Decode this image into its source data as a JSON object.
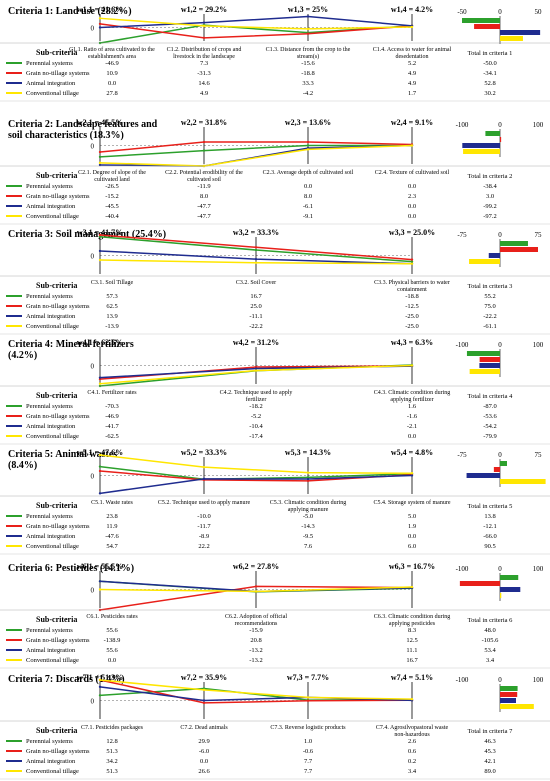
{
  "sub_criteria_label": "Sub-criteria",
  "colors": {
    "Perennial systems": "#2ca02c",
    "Grain no-tillage systems": "#e8201a",
    "Animal integration": "#1f2c8f",
    "Conventional tillage": "#ffe600"
  },
  "chart_data": [
    {
      "type": "line",
      "title": "Criteria 1: Land use (28.2%)",
      "weights": [
        "w1,1 = 41.6%",
        "w1,2 = 29.2%",
        "w1,3 = 25%",
        "w1,4 = 4.2%"
      ],
      "categories": [
        "C1.1. Ratio of area cultivated to the establishment's area",
        "C1.2. Distribution of crops and livestock in the landscape",
        "C1.3. Distance from the crop to the stream(s)",
        "C1.4. Access to water for animal desedentation"
      ],
      "total_label": "Total in criteria 1",
      "axis_ticks": [
        "-50",
        "0",
        "50"
      ],
      "axis_range": [
        -50,
        50
      ],
      "series": [
        {
          "name": "Perennial systems",
          "values": [
            -46.9,
            7.3,
            -15.6,
            5.2
          ],
          "total": -50.0
        },
        {
          "name": "Grain no-tillage systems",
          "values": [
            10.9,
            -31.3,
            -18.8,
            4.9
          ],
          "total": -34.1
        },
        {
          "name": "Animal integration",
          "values": [
            0.0,
            14.6,
            33.3,
            4.9
          ],
          "total": 52.8
        },
        {
          "name": "Conventional tillage",
          "values": [
            27.8,
            4.9,
            -4.2,
            1.7
          ],
          "total": 30.2
        }
      ]
    },
    {
      "type": "line",
      "title": "Criteria 2: Landscape features and soil characteristics (18.3%)",
      "weights": [
        "w2,1 = 45.5%",
        "w2,2 = 31.8%",
        "w2,3 = 13.6%",
        "w2,4 = 9.1%"
      ],
      "categories": [
        "C2.1. Degree of slope of the cultivated land",
        "C2.2. Potential erodibility of the cultivated soil",
        "C2.3. Average depth of cultivated soil",
        "C2.4. Texture of cultivated soil"
      ],
      "total_label": "Total in criteria 2",
      "axis_ticks": [
        "-100",
        "0",
        "100"
      ],
      "axis_range": [
        -100,
        100
      ],
      "series": [
        {
          "name": "Perennial systems",
          "values": [
            -26.5,
            -11.9,
            0.0,
            0.0
          ],
          "total": -38.4
        },
        {
          "name": "Grain no-tillage systems",
          "values": [
            -15.2,
            8.0,
            8.0,
            2.3
          ],
          "total": 3.0
        },
        {
          "name": "Animal integration",
          "values": [
            -45.5,
            -47.7,
            -6.1,
            0.0
          ],
          "total": -99.2
        },
        {
          "name": "Conventional tillage",
          "values": [
            -40.4,
            -47.7,
            -9.1,
            0.0
          ],
          "total": -97.2
        }
      ]
    },
    {
      "type": "line",
      "title": "Criteria 3: Soil management (25.4%)",
      "weights": [
        "w3,1 = 41.7%",
        "w3,2 = 33.3%",
        "w3,3 = 25.0%"
      ],
      "categories": [
        "C3.1. Soil Tillage",
        "C3.2. Soil Cover",
        "C3.3. Physical barriers to water containment"
      ],
      "total_label": "Total in criteria 3",
      "axis_ticks": [
        "-75",
        "0",
        "75"
      ],
      "axis_range": [
        -75,
        75
      ],
      "series": [
        {
          "name": "Perennial systems",
          "values": [
            57.3,
            16.7,
            -18.8
          ],
          "total": 55.2
        },
        {
          "name": "Grain no-tillage systems",
          "values": [
            62.5,
            25.0,
            -12.5
          ],
          "total": 75.0
        },
        {
          "name": "Animal integration",
          "values": [
            13.9,
            -11.1,
            -25.0
          ],
          "total": -22.2
        },
        {
          "name": "Conventional tillage",
          "values": [
            -13.9,
            -22.2,
            -25.0
          ],
          "total": -61.1
        }
      ]
    },
    {
      "type": "line",
      "title": "Criteria 4: Mineral fertilizers (4.2%)",
      "weights": [
        "w4,1 = 62.5%",
        "w4,2 = 31.2%",
        "w4,3 = 6.3%"
      ],
      "categories": [
        "C4.1. Fertilizer rates",
        "C4.2. Technique used to apply fertilizer",
        "C4.3. Climatic condition during applying fertilizer"
      ],
      "total_label": "Total in criteria 4",
      "axis_ticks": [
        "-100",
        "0",
        "100"
      ],
      "axis_range": [
        -100,
        100
      ],
      "series": [
        {
          "name": "Perennial systems",
          "values": [
            -70.3,
            -18.2,
            1.6
          ],
          "total": -87.0
        },
        {
          "name": "Grain no-tillage systems",
          "values": [
            -46.9,
            -5.2,
            -1.6
          ],
          "total": -53.6
        },
        {
          "name": "Animal integration",
          "values": [
            -41.7,
            -10.4,
            -2.1
          ],
          "total": -54.2
        },
        {
          "name": "Conventional tillage",
          "values": [
            -62.5,
            -17.4,
            0.0
          ],
          "total": -79.9
        }
      ]
    },
    {
      "type": "line",
      "title": "Criteria 5: Animal wastes (8.4%)",
      "weights": [
        "w5,1 = 47.6%",
        "w5,2 = 33.3%",
        "w5,3 = 14.3%",
        "w5,4 = 4.8%"
      ],
      "categories": [
        "C5.1. Waste rates",
        "C5.2. Technique used to apply manure",
        "C5.3. Climatic condition during applying manure",
        "C5.4. Storage system of manure"
      ],
      "total_label": "Total in criteria 5",
      "axis_ticks": [
        "-75",
        "0",
        "75"
      ],
      "axis_range": [
        -75,
        75
      ],
      "series": [
        {
          "name": "Perennial systems",
          "values": [
            23.8,
            -10.0,
            -5.0,
            5.0
          ],
          "total": 13.8
        },
        {
          "name": "Grain no-tillage systems",
          "values": [
            11.9,
            -11.7,
            -14.3,
            1.9
          ],
          "total": -12.1
        },
        {
          "name": "Animal integration",
          "values": [
            -47.6,
            -8.9,
            -9.5,
            0.0
          ],
          "total": -66.0
        },
        {
          "name": "Conventional tillage",
          "values": [
            54.7,
            22.2,
            7.6,
            6.0
          ],
          "total": 90.5
        }
      ]
    },
    {
      "type": "line",
      "title": "Criteria 6: Pesticides (14.1%)",
      "weights": [
        "w6,1 = 55.5%",
        "w6,2 = 27.8%",
        "w6,3 = 16.7%"
      ],
      "categories": [
        "C6.1. Pesticides rates",
        "C6.2. Adoption of official recommendations",
        "C6.3. Climatic condition during applying pesticides"
      ],
      "total_label": "Total in criteria 6",
      "axis_ticks": [
        "-100",
        "0",
        "100"
      ],
      "axis_range": [
        -100,
        100
      ],
      "series": [
        {
          "name": "Perennial systems",
          "values": [
            55.6,
            -15.9,
            8.3
          ],
          "total": 48.0
        },
        {
          "name": "Grain no-tillage systems",
          "values": [
            -138.9,
            20.8,
            12.5
          ],
          "total": -105.6
        },
        {
          "name": "Animal integration",
          "values": [
            55.6,
            -13.2,
            11.1
          ],
          "total": 53.4
        },
        {
          "name": "Conventional tillage",
          "values": [
            0.0,
            -13.2,
            16.7
          ],
          "total": 3.4
        }
      ]
    },
    {
      "type": "line",
      "title": "Criteria 7: Discards (1.4%)",
      "weights": [
        "w7,1 = 51.3%",
        "w7,2 = 35.9%",
        "w7,3 = 7.7%",
        "w7,4 = 5.1%"
      ],
      "categories": [
        "C7.1. Pesticides packages",
        "C7.2. Dead animals",
        "C7.3. Reverse logistic products",
        "C7.4. Agrosilvopastoral waste non-hazardous"
      ],
      "total_label": "Total in criteria 7",
      "axis_ticks": [
        "-100",
        "0",
        "100"
      ],
      "axis_range": [
        -100,
        100
      ],
      "series": [
        {
          "name": "Perennial systems",
          "values": [
            12.8,
            29.9,
            1.0,
            2.6
          ],
          "total": 46.3
        },
        {
          "name": "Grain no-tillage systems",
          "values": [
            51.3,
            -6.0,
            -0.6,
            0.6
          ],
          "total": 45.3
        },
        {
          "name": "Animal integration",
          "values": [
            34.2,
            0.0,
            7.7,
            0.2
          ],
          "total": 42.1
        },
        {
          "name": "Conventional tillage",
          "values": [
            51.3,
            26.6,
            7.7,
            3.4
          ],
          "total": 89.0
        }
      ]
    }
  ]
}
